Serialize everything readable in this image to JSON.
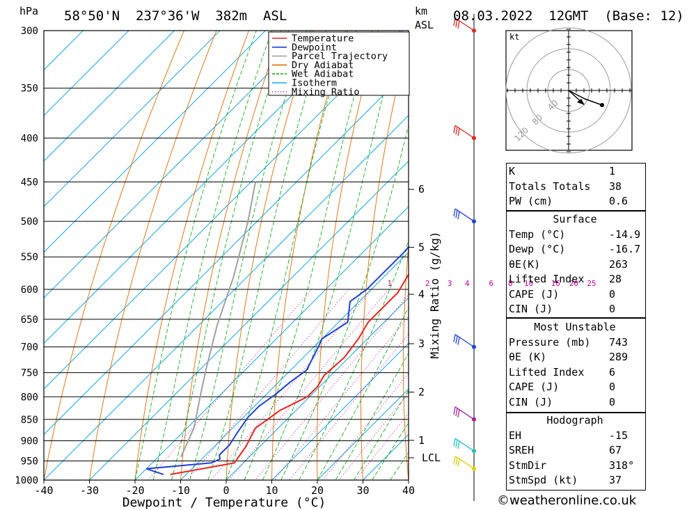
{
  "header": {
    "unit_left": "hPa",
    "location": "58°50'N  237°36'W  382m  ASL",
    "km_label": "km",
    "asl_label": "ASL",
    "date": "08.03.2022  12GMT  (Base: 12)"
  },
  "chart_data": {
    "type": "line",
    "xlabel": "Dewpoint / Temperature (°C)",
    "ylabel": "hPa",
    "xlim": [
      -40,
      40
    ],
    "ylim": [
      1000,
      300
    ],
    "x_ticks": [
      "-40",
      "-30",
      "-20",
      "-10",
      "0",
      "10",
      "20",
      "30",
      "40"
    ],
    "pressure_levels": [
      "300",
      "350",
      "400",
      "450",
      "500",
      "550",
      "600",
      "650",
      "700",
      "750",
      "800",
      "850",
      "900",
      "950",
      "1000"
    ],
    "height_labels_km": [
      {
        "p": 459,
        "label": "6"
      },
      {
        "p": 536,
        "label": "5"
      },
      {
        "p": 608,
        "label": "4"
      },
      {
        "p": 694,
        "label": "3"
      },
      {
        "p": 790,
        "label": "2"
      },
      {
        "p": 899,
        "label": "1"
      },
      {
        "p": 942,
        "label": "LCL"
      }
    ],
    "mixing_ratio_axis_label": "Mixing Ratio (g/kg)",
    "mixing_ratio_labels": [
      "1",
      "2",
      "3",
      "4",
      "6",
      "8",
      "10",
      "16",
      "20",
      "25"
    ],
    "mixing_ratio_label_x": [
      -6,
      2.3,
      7.2,
      11.0,
      16.3,
      20.5,
      24.5,
      30.4,
      34.4,
      38.3
    ],
    "legend": [
      {
        "name": "Temperature",
        "color": "#e8231f",
        "style": "solid"
      },
      {
        "name": "Dewpoint",
        "color": "#1f3fd6",
        "style": "solid"
      },
      {
        "name": "Parcel Trajectory",
        "color": "#a0a0a0",
        "style": "solid"
      },
      {
        "name": "Dry Adiabat",
        "color": "#e06a00",
        "style": "solid"
      },
      {
        "name": "Wet Adiabat",
        "color": "#13b01a",
        "style": "dashed"
      },
      {
        "name": "Isotherm",
        "color": "#1aa6e8",
        "style": "solid"
      },
      {
        "name": "Mixing Ratio",
        "color": "#cc0099",
        "style": "dotted"
      }
    ],
    "series": [
      {
        "name": "Temperature",
        "points": [
          [
            -13.5,
            985
          ],
          [
            -2,
            955
          ],
          [
            -3,
            915
          ],
          [
            -5,
            870
          ],
          [
            -3.5,
            830
          ],
          [
            -0.5,
            800
          ],
          [
            -0.5,
            778
          ],
          [
            -1.5,
            755
          ],
          [
            -1,
            720
          ],
          [
            -2,
            685
          ],
          [
            -3.5,
            655
          ],
          [
            -3.5,
            605
          ],
          [
            -5.5,
            570
          ],
          [
            -8,
            530
          ],
          [
            -9,
            500
          ],
          [
            -10,
            465
          ],
          [
            -11,
            440
          ],
          [
            -11.5,
            415
          ],
          [
            -11.5,
            400
          ],
          [
            -12,
            380
          ],
          [
            -12,
            350
          ],
          [
            -12.5,
            310
          ],
          [
            -12.5,
            300
          ]
        ]
      },
      {
        "name": "Dewpoint",
        "points": [
          [
            -15,
            985
          ],
          [
            -20,
            970
          ],
          [
            -7,
            955
          ],
          [
            -6,
            945
          ],
          [
            -7,
            935
          ],
          [
            -7,
            910
          ],
          [
            -8,
            880
          ],
          [
            -9,
            845
          ],
          [
            -9,
            820
          ],
          [
            -8,
            795
          ],
          [
            -7.5,
            770
          ],
          [
            -6.5,
            745
          ],
          [
            -9,
            700
          ],
          [
            -10,
            685
          ],
          [
            -8,
            655
          ],
          [
            -12,
            620
          ],
          [
            -11,
            600
          ],
          [
            -11,
            580
          ],
          [
            -11,
            565
          ],
          [
            -11,
            540
          ],
          [
            -12,
            520
          ],
          [
            -13,
            490
          ],
          [
            -14,
            460
          ],
          [
            -15,
            440
          ],
          [
            -15.5,
            420
          ],
          [
            -16.5,
            405
          ],
          [
            -19,
            390
          ],
          [
            -24,
            355
          ],
          [
            -28,
            330
          ],
          [
            -31,
            305
          ],
          [
            -31.5,
            300
          ]
        ]
      },
      {
        "name": "Parcel Trajectory",
        "points": [
          [
            -15,
            940
          ],
          [
            -18.5,
            870
          ],
          [
            -20,
            850
          ],
          [
            -24,
            800
          ],
          [
            -29,
            740
          ],
          [
            -36,
            660
          ],
          [
            -43,
            580
          ],
          [
            -52,
            500
          ],
          [
            -59,
            450
          ]
        ]
      }
    ],
    "wind_barbs": [
      {
        "p": 300,
        "color": "#e8231f"
      },
      {
        "p": 400,
        "color": "#e8231f"
      },
      {
        "p": 500,
        "color": "#2040e0"
      },
      {
        "p": 700,
        "color": "#2040e0"
      },
      {
        "p": 850,
        "color": "#a020a0"
      },
      {
        "p": 925,
        "color": "#20c0c0"
      },
      {
        "p": 970,
        "color": "#e0d000"
      }
    ]
  },
  "hodograph": {
    "unit": "kt",
    "ring_labels": [
      "40",
      "80",
      "120"
    ]
  },
  "indices": [
    {
      "label": "K",
      "value": "1"
    },
    {
      "label": "Totals Totals",
      "value": "38"
    },
    {
      "label": "PW (cm)",
      "value": "0.6"
    }
  ],
  "surface": {
    "title": "Surface",
    "rows": [
      {
        "label": "Temp (°C)",
        "value": "-14.9"
      },
      {
        "label": "Dewp (°C)",
        "value": "-16.7"
      },
      {
        "label": "θE(K)",
        "value": "263"
      },
      {
        "label": "Lifted Index",
        "value": "28"
      },
      {
        "label": "CAPE (J)",
        "value": "0"
      },
      {
        "label": "CIN (J)",
        "value": "0"
      }
    ]
  },
  "most_unstable": {
    "title": "Most Unstable",
    "rows": [
      {
        "label": "Pressure (mb)",
        "value": "743"
      },
      {
        "label": "θE (K)",
        "value": "289"
      },
      {
        "label": "Lifted Index",
        "value": "6"
      },
      {
        "label": "CAPE (J)",
        "value": "0"
      },
      {
        "label": "CIN (J)",
        "value": "0"
      }
    ]
  },
  "hodograph_table": {
    "title": "Hodograph",
    "rows": [
      {
        "label": "EH",
        "value": "-15"
      },
      {
        "label": "SREH",
        "value": "67"
      },
      {
        "label": "StmDir",
        "value": "318°"
      },
      {
        "label": "StmSpd (kt)",
        "value": "37"
      }
    ]
  },
  "credit": "©weatheronline.co.uk"
}
